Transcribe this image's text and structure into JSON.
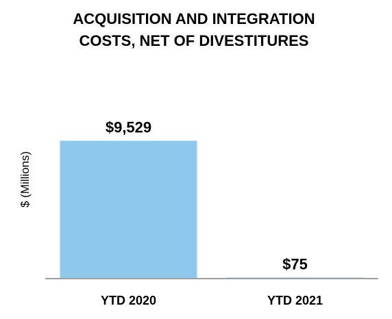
{
  "chart_data": {
    "type": "bar",
    "title_lines": [
      "ACQUISITION AND INTEGRATION",
      "COSTS, NET OF DIVESTITURES"
    ],
    "ylabel": "$ (Millions)",
    "xlabel": "",
    "categories": [
      "YTD 2020",
      "YTD 2021"
    ],
    "values": [
      9529,
      75
    ],
    "value_labels": [
      "$9,529",
      "$75"
    ],
    "ylim": [
      0,
      12300
    ],
    "grid": false,
    "legend": "none",
    "colors": {
      "bar": "#8EC8EB",
      "axis": "#9E9E9E",
      "text": "#000000"
    }
  }
}
